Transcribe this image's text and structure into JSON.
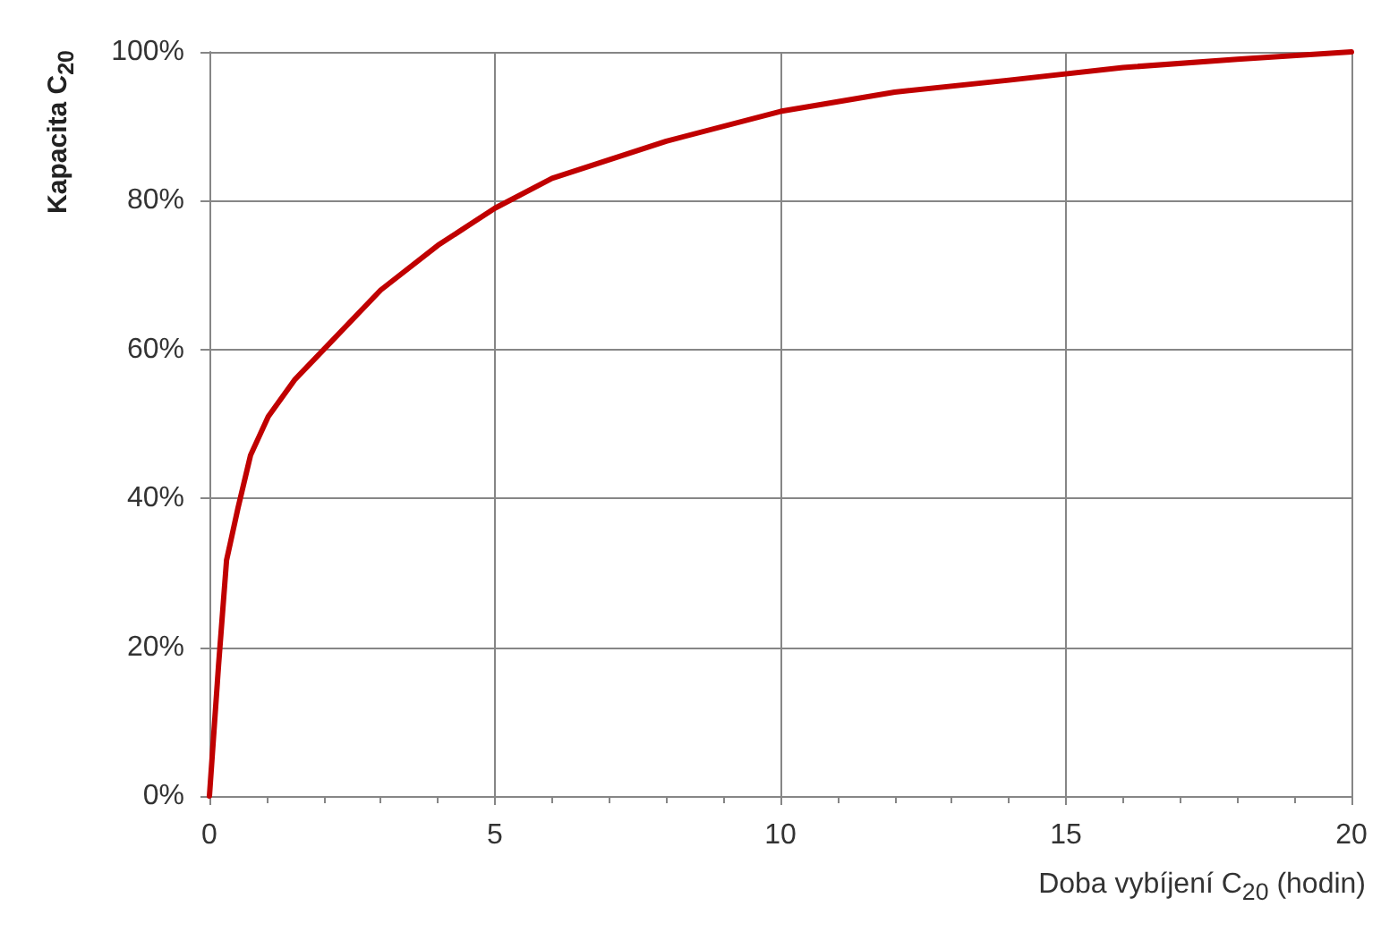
{
  "chart_data": {
    "type": "line",
    "xlabel": "Doba vybíjení C$_{20}$ (hodin)",
    "ylabel": "Kapacita C$_{20}$",
    "x": [
      0,
      0.16,
      0.3,
      0.5,
      0.72,
      1.03,
      1.5,
      2,
      3,
      4,
      5,
      6,
      8,
      10,
      12,
      14,
      16,
      18,
      20
    ],
    "series": [
      {
        "color": "#c00000",
        "values": [
          0,
          17.6,
          31.7,
          38.7,
          45.8,
          51,
          56,
          60,
          68,
          74,
          79,
          83,
          88,
          92,
          94.6,
          96.2,
          97.9,
          99,
          100
        ]
      }
    ],
    "xlim": [
      0,
      20
    ],
    "xticks": [
      0,
      5,
      10,
      15,
      20
    ],
    "ylim": [
      0,
      100
    ],
    "yticks": [
      {
        "value": 0,
        "label": "0%"
      },
      {
        "value": 20,
        "label": "20%"
      },
      {
        "value": 40,
        "label": "40%"
      },
      {
        "value": 60,
        "label": "60%"
      },
      {
        "value": 80,
        "label": "80%"
      },
      {
        "value": 100,
        "label": "100%"
      }
    ],
    "grid": true,
    "marker": "none",
    "line_style": "solid"
  }
}
